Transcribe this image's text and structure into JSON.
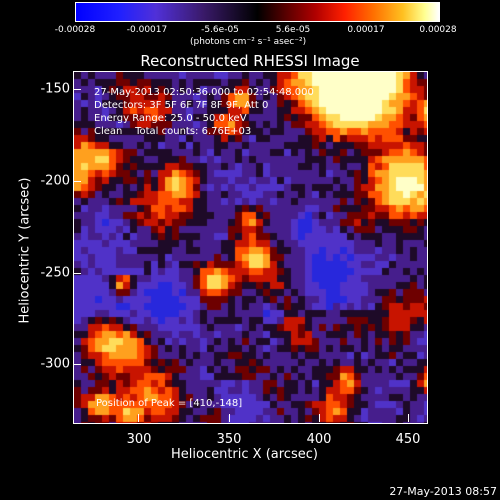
{
  "colorbar": {
    "ticks": [
      "-0.00028",
      "-0.00017",
      "-5.6e-05",
      "5.6e-05",
      "0.00017",
      "0.00028"
    ],
    "units_text": "(photons cm⁻² s⁻¹ asec⁻²)"
  },
  "title": "Reconstructed RHESSI Image",
  "annotations": {
    "time_range": "27-May-2013 02:50:36.000 to 02:54:48.000",
    "detectors": "Detectors: 3F 5F 6F 7F 8F 9F, Att 0",
    "energy": "Energy Range: 25.0 - 50.0 keV",
    "clean": "Clean    Total counts: 6.76E+03",
    "peak": "Position of Peak = [410,-148]"
  },
  "axes": {
    "xlabel": "Heliocentric X (arcsec)",
    "ylabel": "Heliocentric Y (arcsec)",
    "xticks": [
      "300",
      "350",
      "400",
      "450"
    ],
    "yticks": [
      "-150",
      "-200",
      "-250",
      "-300"
    ]
  },
  "footer": {
    "timestamp": "27-May-2013 08:57"
  },
  "colors": {
    "background": "#000000",
    "text": "#ffffff"
  }
}
